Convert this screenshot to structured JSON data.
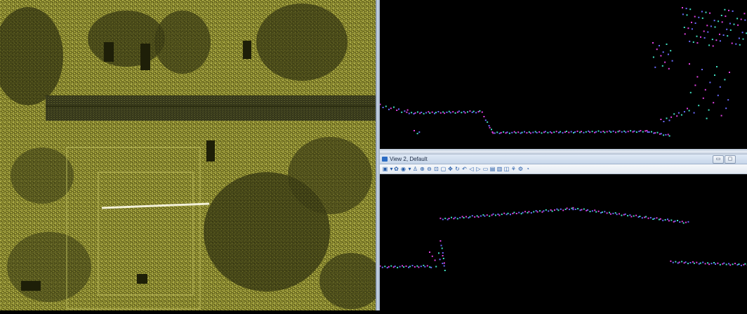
{
  "view2": {
    "title": "View 2, Default",
    "minimize_symbol": "▭",
    "maximize_symbol": "▢",
    "toolbar": [
      {
        "name": "view-attributes-icon",
        "glyph": "▣"
      },
      {
        "name": "dropdown-arrow-icon",
        "glyph": "▾"
      },
      {
        "name": "update-view-icon",
        "glyph": "✿"
      },
      {
        "name": "display-style-icon",
        "glyph": "◉"
      },
      {
        "name": "dropdown-arrow-icon",
        "glyph": "▾"
      },
      {
        "name": "view-rotation-icon",
        "glyph": "♙"
      },
      {
        "name": "zoom-in-icon",
        "glyph": "⊕"
      },
      {
        "name": "zoom-out-icon",
        "glyph": "⊖"
      },
      {
        "name": "window-area-icon",
        "glyph": "⊡"
      },
      {
        "name": "fit-view-icon",
        "glyph": "▢"
      },
      {
        "name": "pan-icon",
        "glyph": "✥"
      },
      {
        "name": "rotate-view-icon",
        "glyph": "↻"
      },
      {
        "name": "walk-icon",
        "glyph": "↶"
      },
      {
        "name": "view-previous-icon",
        "glyph": "◁"
      },
      {
        "name": "view-next-icon",
        "glyph": "▷"
      },
      {
        "name": "copy-view-icon",
        "glyph": "▭"
      },
      {
        "name": "clip-volume-icon",
        "glyph": "▤"
      },
      {
        "name": "clip-mask-icon",
        "glyph": "▥"
      },
      {
        "name": "camera-icon",
        "glyph": "◫"
      },
      {
        "name": "render-icon",
        "glyph": "⚘"
      },
      {
        "name": "settings-icon",
        "glyph": "⚙"
      },
      {
        "name": "help-icon",
        "glyph": "◔"
      }
    ]
  },
  "colors": {
    "cloud_dark": "#2c2d10",
    "cloud_mid": "#8a8a2a",
    "cloud_light": "#c9c85a",
    "profile_magenta": "#e040e0",
    "profile_blue": "#6a6aff",
    "profile_cyan": "#40e0c0"
  }
}
